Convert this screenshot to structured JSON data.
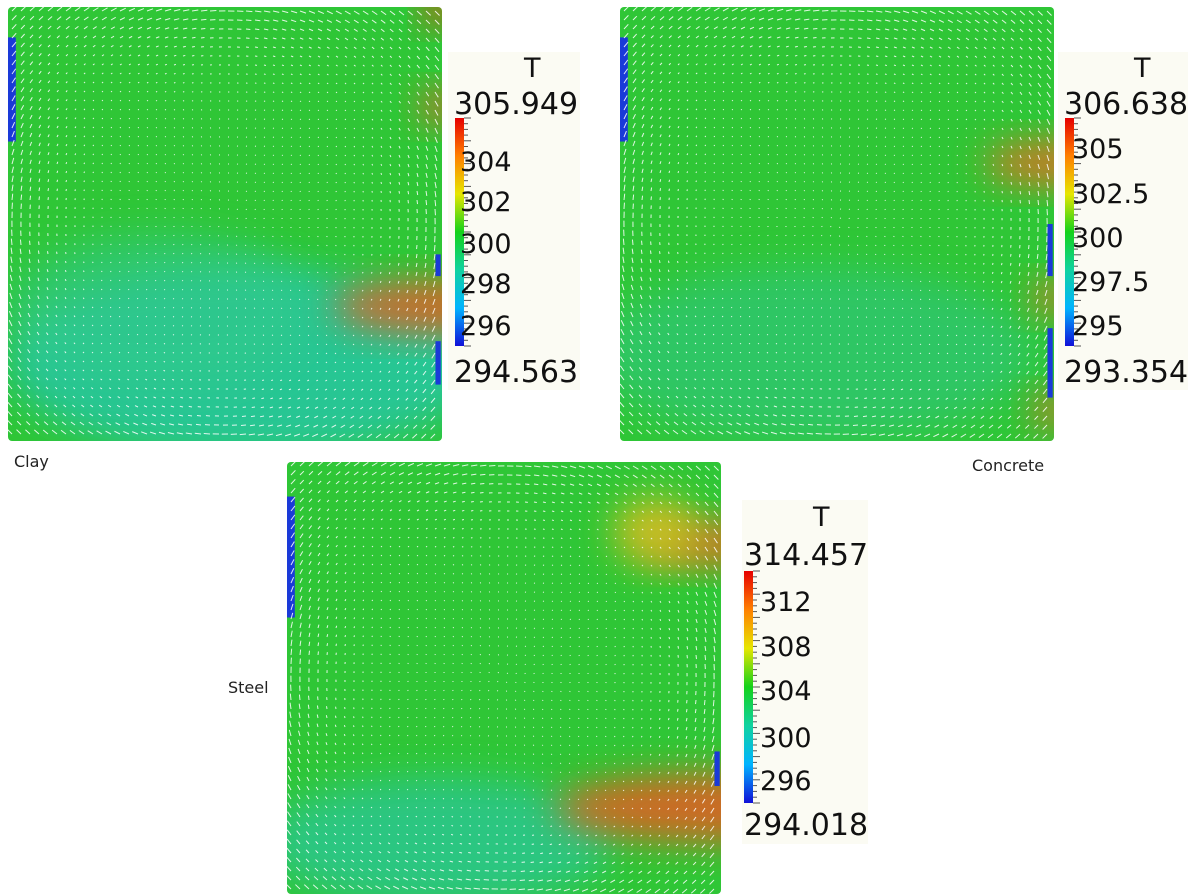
{
  "panels": [
    {
      "caption": "Clay",
      "legend": {
        "title": "T",
        "max": "305.949",
        "min": "294.563",
        "ticks": [
          "304",
          "302",
          "300",
          "298",
          "296"
        ]
      }
    },
    {
      "caption": "Concrete",
      "legend": {
        "title": "T",
        "max": "306.638",
        "min": "293.354",
        "ticks": [
          "305",
          "302.5",
          "300",
          "297.5",
          "295"
        ]
      }
    },
    {
      "caption": "Steel",
      "legend": {
        "title": "T",
        "max": "314.457",
        "min": "294.018",
        "ticks": [
          "312",
          "308",
          "304",
          "300",
          "296"
        ]
      }
    }
  ],
  "colors": {
    "colormap": [
      "#1010d8",
      "#00b4ff",
      "#10d2a0",
      "#14d21a",
      "#e6e600",
      "#ff8000",
      "#e60000"
    ],
    "field_base": "#2fc636",
    "arrow": "#ffffff"
  }
}
